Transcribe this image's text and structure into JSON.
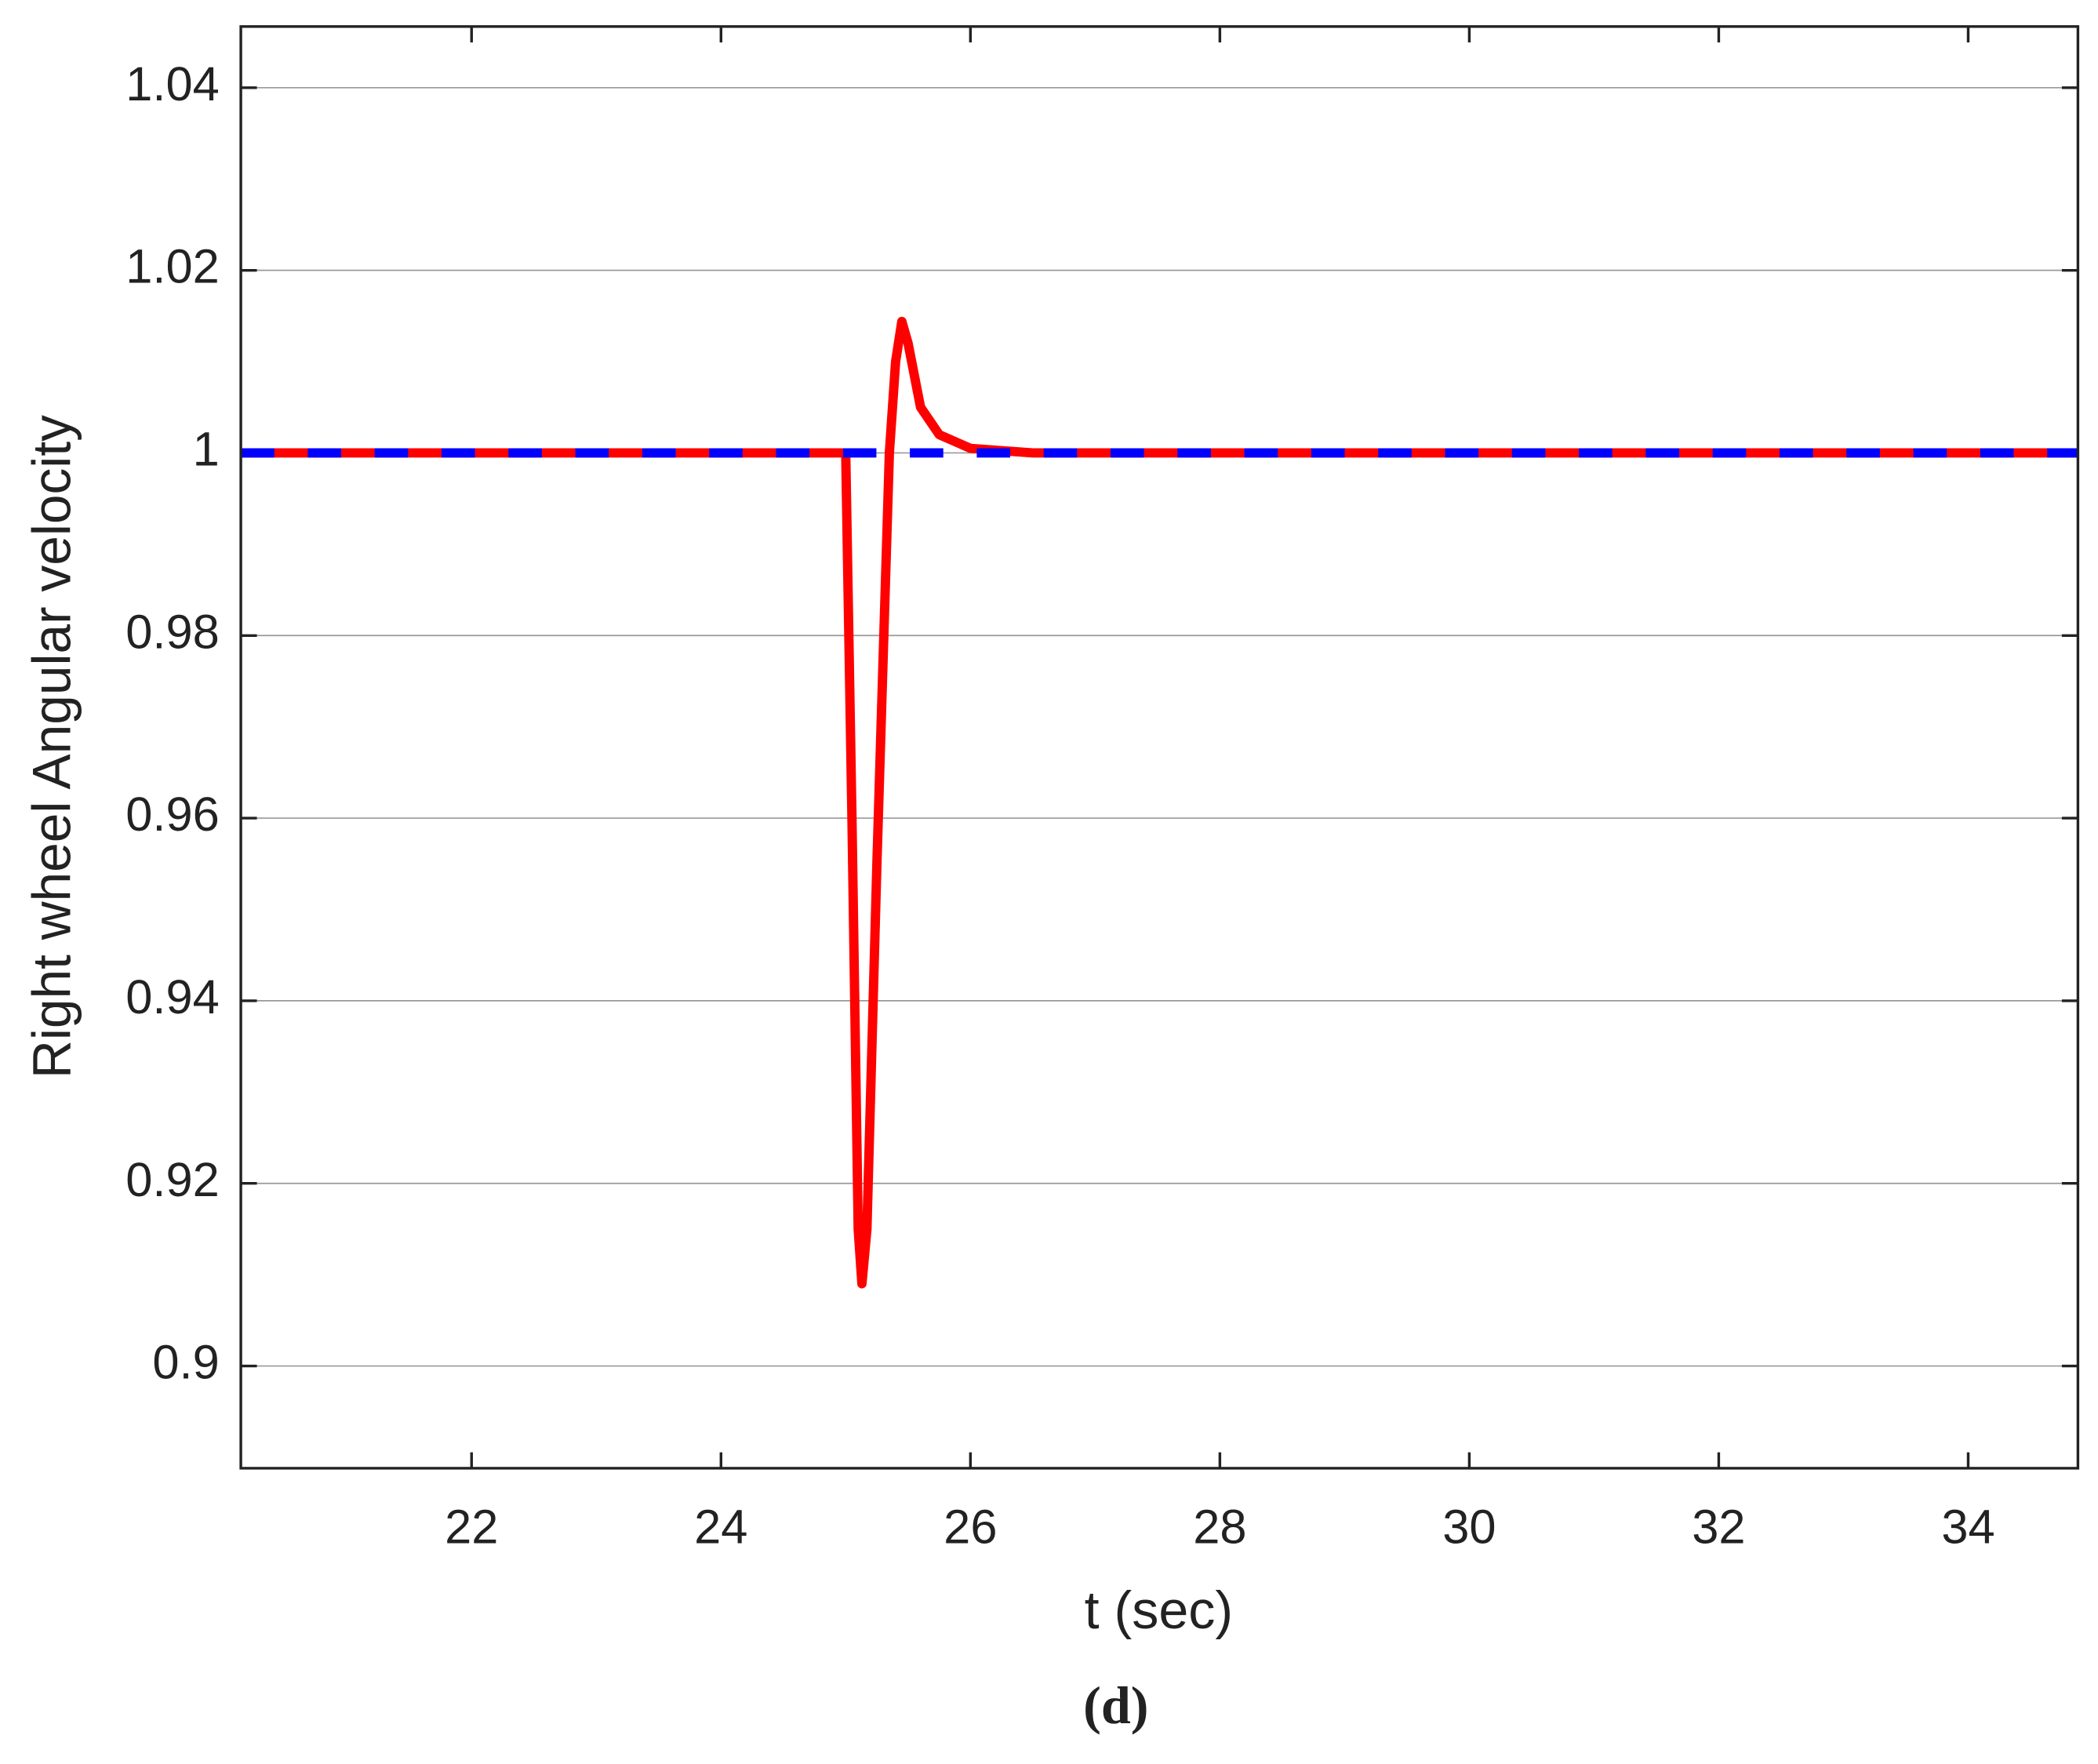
{
  "chart_data": {
    "type": "line",
    "x_label": "t (sec)",
    "y_label": "Right wheel Angular  velocity",
    "caption": "(d)",
    "xlim": [
      20.15,
      34.88
    ],
    "ylim": [
      0.8888,
      1.0467
    ],
    "xticks": [
      22,
      24,
      26,
      28,
      30,
      32,
      34
    ],
    "yticks": [
      0.9,
      0.92,
      0.94,
      0.96,
      0.98,
      1,
      1.02,
      1.04
    ],
    "grid": true,
    "series": [
      {
        "color": "#ff0000",
        "dash": false,
        "x": [
          20.15,
          25.0,
          25.05,
          25.1,
          25.13,
          25.17,
          25.25,
          25.35,
          25.4,
          25.45,
          25.5,
          25.6,
          25.75,
          26.0,
          26.5,
          34.88
        ],
        "values": [
          1,
          1,
          0.96,
          0.915,
          0.909,
          0.915,
          0.955,
          1.0,
          1.01,
          1.0144,
          1.012,
          1.005,
          1.002,
          1.0005,
          1.0,
          1
        ]
      },
      {
        "color": "#0000ff",
        "dash": true,
        "x": [
          20.15,
          34.88
        ],
        "values": [
          1,
          1
        ]
      }
    ]
  }
}
